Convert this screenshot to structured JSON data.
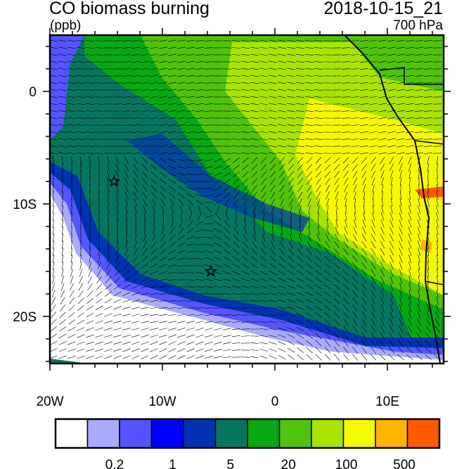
{
  "title": "CO biomass burning",
  "valid_time": "2018-10-15_21",
  "units": "(ppb)",
  "level": "700 hPa",
  "map": {
    "lon_range": [
      -20,
      15
    ],
    "lat_range": [
      -24,
      5
    ],
    "lon_ticks": [
      "20W",
      "10W",
      "0",
      "10E"
    ],
    "lat_ticks": [
      "0",
      "10S",
      "20S"
    ],
    "markers": [
      {
        "type": "star",
        "lon": -14.3,
        "lat": -8.0
      },
      {
        "type": "star",
        "lon": -5.7,
        "lat": -16.0
      }
    ]
  },
  "colorbar": {
    "colors": [
      "#ffffff",
      "#aaaaff",
      "#5555ff",
      "#0000ff",
      "#0033b0",
      "#06755f",
      "#06a814",
      "#50c40a",
      "#a8e400",
      "#f5fa00",
      "#ffb400",
      "#ff5a00",
      "#ff1000"
    ],
    "labels": [
      "0.2",
      "1",
      "5",
      "20",
      "100",
      "500"
    ]
  }
}
